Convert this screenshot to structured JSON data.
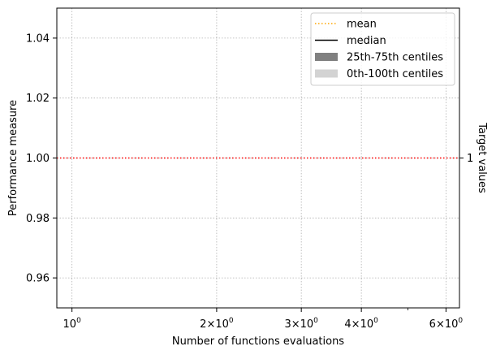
{
  "chart_data": {
    "type": "line",
    "xlabel": "Number of functions evaluations",
    "ylabel": "Performance measure",
    "right_ylabel": "Target values",
    "x_scale": "log",
    "xlim": [
      0.93,
      6.4
    ],
    "ylim": [
      0.95,
      1.05
    ],
    "grid": true,
    "x_ticks": [
      {
        "value": 1,
        "base": "10",
        "exp": "0",
        "prefix": ""
      },
      {
        "value": 2,
        "base": "10",
        "exp": "0",
        "prefix": "2×"
      },
      {
        "value": 3,
        "base": "10",
        "exp": "0",
        "prefix": "3×"
      },
      {
        "value": 4,
        "base": "10",
        "exp": "0",
        "prefix": "4×"
      },
      {
        "value": 6,
        "base": "10",
        "exp": "0",
        "prefix": "6×"
      }
    ],
    "x_minor_ticks": [
      5
    ],
    "y_ticks": [
      {
        "value": 0.96,
        "label": "0.96"
      },
      {
        "value": 0.98,
        "label": "0.98"
      },
      {
        "value": 1.0,
        "label": "1.00"
      },
      {
        "value": 1.02,
        "label": "1.02"
      },
      {
        "value": 1.04,
        "label": "1.04"
      }
    ],
    "target_lines": [
      {
        "value": 1.0,
        "label": "1",
        "color": "#ff0000"
      }
    ],
    "legend": {
      "position": "top-right",
      "entries": [
        {
          "label": "mean",
          "kind": "dotted-line",
          "color": "#ffa500"
        },
        {
          "label": "median",
          "kind": "line",
          "color": "#000000"
        },
        {
          "label": "25th-75th centiles",
          "kind": "patch",
          "color": "#808080"
        },
        {
          "label": "0th-100th centiles",
          "kind": "patch",
          "color": "#d3d3d3"
        }
      ]
    },
    "series": []
  }
}
